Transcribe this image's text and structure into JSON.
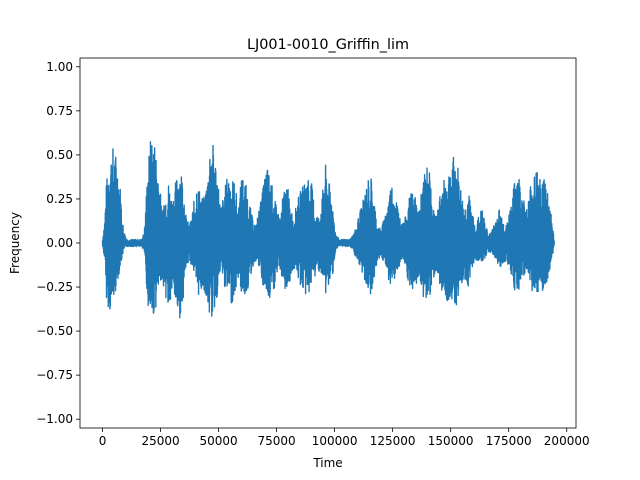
{
  "chart_data": {
    "type": "line",
    "title": "LJ001-0010_Griffin_lim",
    "xlabel": "Time",
    "ylabel": "Frequency",
    "xlim": [
      -9700,
      204000
    ],
    "ylim": [
      -1.05,
      1.05
    ],
    "xticks": [
      0,
      25000,
      50000,
      75000,
      100000,
      125000,
      150000,
      175000,
      200000
    ],
    "xtick_labels": [
      "0",
      "25000",
      "50000",
      "75000",
      "100000",
      "125000",
      "150000",
      "175000",
      "200000"
    ],
    "yticks": [
      -1.0,
      -0.75,
      -0.5,
      -0.25,
      0.0,
      0.25,
      0.5,
      0.75,
      1.0
    ],
    "ytick_labels": [
      "−1.00",
      "−0.75",
      "−0.50",
      "−0.25",
      "0.00",
      "0.25",
      "0.50",
      "0.75",
      "1.00"
    ],
    "grid": false,
    "color": "#1f77b4",
    "n_samples": 194600,
    "envelope": {
      "x": [
        0,
        1000,
        1500,
        3000,
        4500,
        6000,
        7500,
        9000,
        10500,
        12000,
        13500,
        15000,
        16500,
        18000,
        19500,
        21000,
        22500,
        24000,
        25500,
        27000,
        28500,
        30000,
        31500,
        33000,
        34500,
        36000,
        37500,
        39000,
        40500,
        42000,
        43500,
        45000,
        46500,
        48000,
        49500,
        51000,
        52500,
        54000,
        55500,
        57000,
        58500,
        60000,
        61500,
        63000,
        64500,
        66000,
        67500,
        69000,
        70500,
        72000,
        73500,
        75000,
        76500,
        78000,
        79500,
        81000,
        82500,
        84000,
        85500,
        87000,
        88500,
        90000,
        91500,
        93000,
        94500,
        96000,
        97500,
        99000,
        100500,
        102000,
        103500,
        105000,
        106500,
        108000,
        109500,
        111000,
        112500,
        114000,
        115500,
        117000,
        118500,
        120000,
        121500,
        123000,
        124500,
        126000,
        127500,
        129000,
        130500,
        132000,
        133500,
        135000,
        136500,
        138000,
        139500,
        141000,
        142500,
        144000,
        145500,
        147000,
        148500,
        150000,
        151500,
        153000,
        154500,
        156000,
        157500,
        159000,
        160500,
        162000,
        163500,
        165000,
        166500,
        168000,
        169500,
        171000,
        172500,
        174000,
        175500,
        177000,
        178500,
        180000,
        181500,
        183000,
        184500,
        186000,
        187500,
        189000,
        190500,
        192000,
        193500,
        194600
      ],
      "upper": [
        0.02,
        0.15,
        0.32,
        0.5,
        0.55,
        0.5,
        0.35,
        0.08,
        0.02,
        0.02,
        0.02,
        0.02,
        0.02,
        0.06,
        0.45,
        0.63,
        0.58,
        0.45,
        0.2,
        0.3,
        0.35,
        0.25,
        0.35,
        0.45,
        0.4,
        0.15,
        0.1,
        0.2,
        0.35,
        0.3,
        0.25,
        0.35,
        0.6,
        0.55,
        0.4,
        0.2,
        0.3,
        0.4,
        0.38,
        0.35,
        0.2,
        0.4,
        0.35,
        0.25,
        0.15,
        0.1,
        0.2,
        0.3,
        0.45,
        0.4,
        0.3,
        0.2,
        0.15,
        0.3,
        0.35,
        0.2,
        0.15,
        0.25,
        0.3,
        0.35,
        0.4,
        0.35,
        0.2,
        0.15,
        0.25,
        0.45,
        0.35,
        0.25,
        0.05,
        0.02,
        0.02,
        0.02,
        0.02,
        0.05,
        0.1,
        0.2,
        0.25,
        0.35,
        0.4,
        0.25,
        0.1,
        0.08,
        0.15,
        0.25,
        0.35,
        0.3,
        0.2,
        0.1,
        0.15,
        0.25,
        0.3,
        0.25,
        0.2,
        0.35,
        0.45,
        0.4,
        0.2,
        0.15,
        0.3,
        0.35,
        0.4,
        0.45,
        0.5,
        0.45,
        0.3,
        0.2,
        0.3,
        0.2,
        0.1,
        0.15,
        0.2,
        0.1,
        0.05,
        0.08,
        0.15,
        0.2,
        0.15,
        0.1,
        0.2,
        0.3,
        0.45,
        0.35,
        0.25,
        0.2,
        0.35,
        0.45,
        0.4,
        0.35,
        0.4,
        0.3,
        0.15,
        0.02
      ],
      "lower": [
        -0.02,
        -0.1,
        -0.3,
        -0.4,
        -0.35,
        -0.25,
        -0.15,
        -0.05,
        -0.02,
        -0.02,
        -0.02,
        -0.02,
        -0.02,
        -0.05,
        -0.35,
        -0.45,
        -0.4,
        -0.3,
        -0.2,
        -0.3,
        -0.4,
        -0.3,
        -0.35,
        -0.45,
        -0.35,
        -0.15,
        -0.1,
        -0.15,
        -0.3,
        -0.3,
        -0.25,
        -0.35,
        -0.45,
        -0.4,
        -0.3,
        -0.15,
        -0.25,
        -0.3,
        -0.35,
        -0.3,
        -0.2,
        -0.3,
        -0.3,
        -0.25,
        -0.15,
        -0.1,
        -0.15,
        -0.25,
        -0.3,
        -0.35,
        -0.3,
        -0.2,
        -0.15,
        -0.25,
        -0.3,
        -0.2,
        -0.15,
        -0.2,
        -0.25,
        -0.3,
        -0.3,
        -0.25,
        -0.2,
        -0.15,
        -0.2,
        -0.3,
        -0.25,
        -0.2,
        -0.04,
        -0.02,
        -0.02,
        -0.02,
        -0.02,
        -0.04,
        -0.1,
        -0.15,
        -0.2,
        -0.25,
        -0.3,
        -0.2,
        -0.1,
        -0.08,
        -0.12,
        -0.2,
        -0.25,
        -0.2,
        -0.15,
        -0.1,
        -0.15,
        -0.25,
        -0.3,
        -0.25,
        -0.2,
        -0.3,
        -0.35,
        -0.3,
        -0.2,
        -0.15,
        -0.25,
        -0.3,
        -0.35,
        -0.3,
        -0.35,
        -0.35,
        -0.25,
        -0.2,
        -0.25,
        -0.15,
        -0.1,
        -0.1,
        -0.12,
        -0.08,
        -0.05,
        -0.06,
        -0.1,
        -0.15,
        -0.12,
        -0.1,
        -0.15,
        -0.25,
        -0.3,
        -0.25,
        -0.2,
        -0.15,
        -0.25,
        -0.3,
        -0.35,
        -0.3,
        -0.3,
        -0.2,
        -0.1,
        -0.02
      ]
    }
  }
}
